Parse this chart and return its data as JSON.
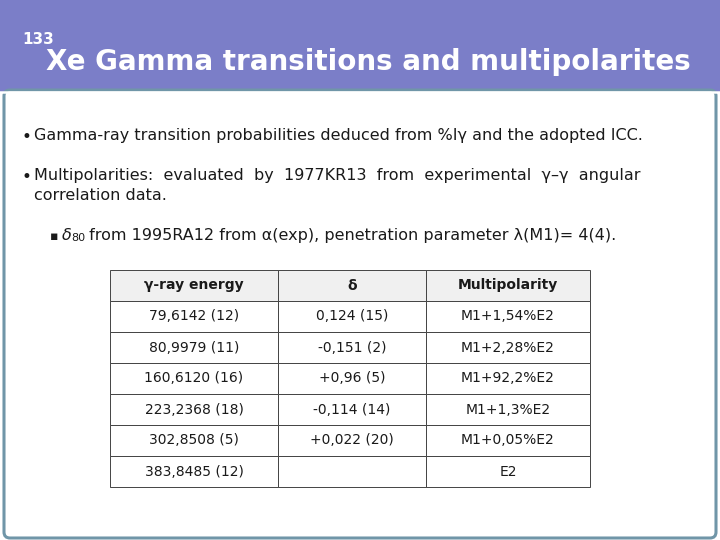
{
  "title_superscript": "133",
  "title_main": "Xe Gamma transitions and multipolarites",
  "header_bg": "#7b7ec8",
  "slide_bg": "#ffffff",
  "border_color": "#7096a8",
  "bullet1": "Gamma-ray transition probabilities deduced from %Iγ and the adopted ICC.",
  "bullet2_part1": "Multipolarities:  evaluated  by  1977KR13  from  experimental  γ–γ  angular",
  "bullet2_part2": "correlation data.",
  "bullet3": "δ80 from 1995RA12 from α(exp), penetration parameter λ(M1)= 4(4).",
  "table_headers": [
    "γ-ray energy",
    "δ",
    "Multipolarity"
  ],
  "table_rows": [
    [
      "79,6142 (12)",
      "0,124 (15)",
      "M1+1,54%E2"
    ],
    [
      "80,9979 (11)",
      "-0,151 (2)",
      "M1+2,28%E2"
    ],
    [
      "160,6120 (16)",
      "+0,96 (5)",
      "M1+92,2%E2"
    ],
    [
      "223,2368 (18)",
      "-0,114 (14)",
      "M1+1,3%E2"
    ],
    [
      "302,8508 (5)",
      "+0,022 (20)",
      "M1+0,05%E2"
    ],
    [
      "383,8485 (12)",
      "",
      "E2"
    ]
  ],
  "header_text_color": "#ffffff",
  "body_text_color": "#1a1a1a",
  "table_header_bg": "#f0f0f0",
  "table_row_bg": "#ffffff",
  "table_border": "#444444",
  "title_fontsize": 20,
  "body_fontsize": 11.5,
  "table_fontsize": 10
}
